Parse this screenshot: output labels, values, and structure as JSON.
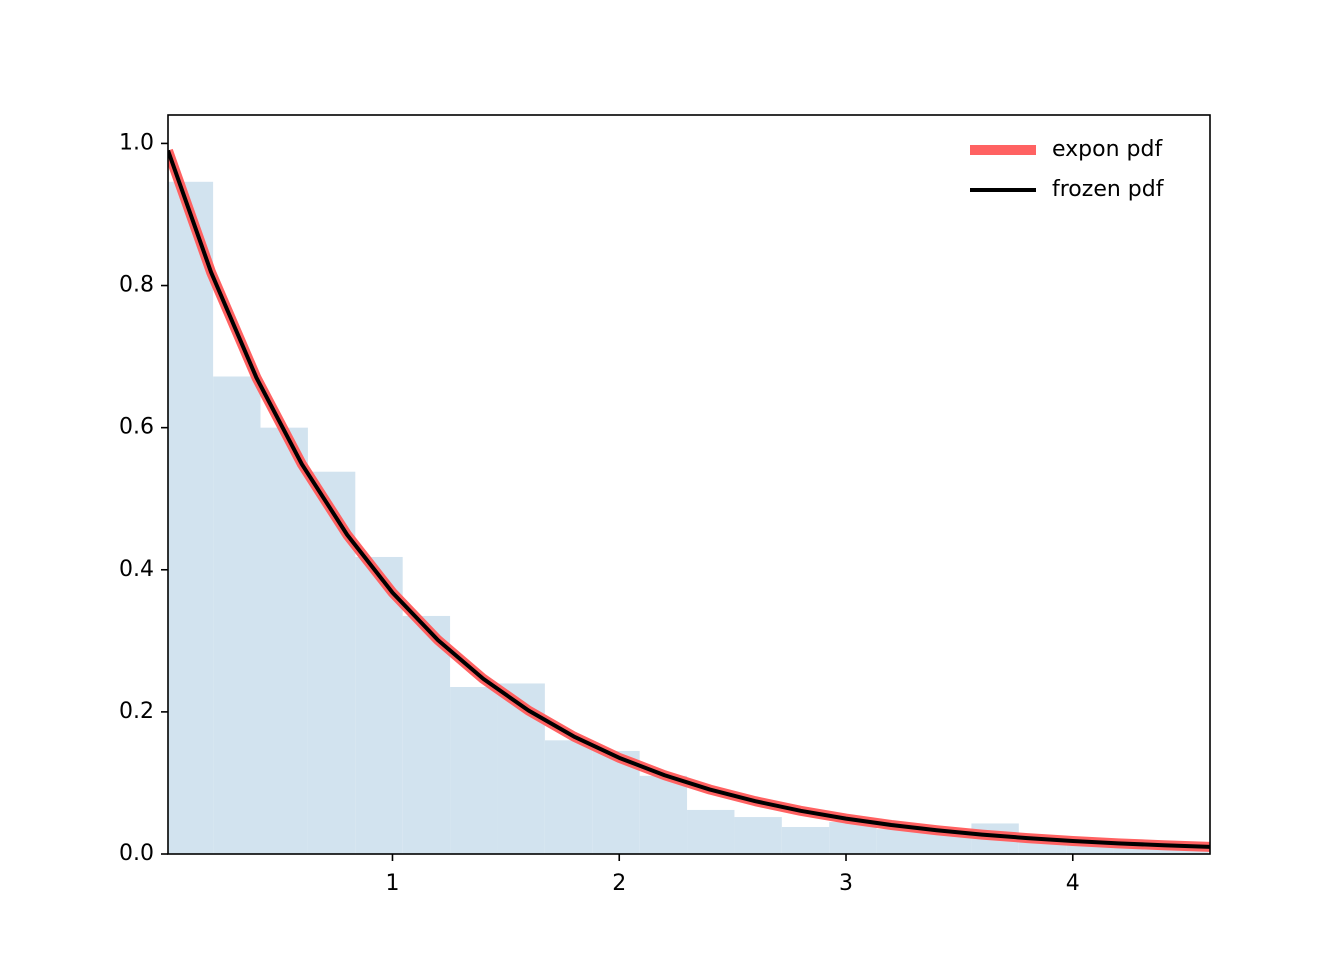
{
  "chart_data": {
    "type": "histogram",
    "bins": [
      0,
      0.209,
      0.418,
      0.627,
      0.836,
      1.045,
      1.254,
      1.463,
      1.672,
      1.881,
      2.09,
      2.299,
      2.508,
      2.717,
      2.926,
      3.135,
      3.344,
      3.553,
      3.762,
      3.971,
      4.18,
      4.389,
      4.598
    ],
    "values": [
      0.946,
      0.672,
      0.6,
      0.538,
      0.418,
      0.335,
      0.235,
      0.24,
      0.16,
      0.145,
      0.11,
      0.062,
      0.052,
      0.038,
      0.045,
      0.035,
      0.03,
      0.043,
      0.02,
      0.015,
      0.012,
      0.008
    ],
    "color": "#d2e3ef",
    "lines": [
      {
        "name": "expon pdf",
        "color": "#ff6262",
        "width": 10,
        "x": [
          0.01005,
          0.2,
          0.4,
          0.6,
          0.8,
          1.0,
          1.2,
          1.4,
          1.6,
          1.8,
          2.0,
          2.2,
          2.4,
          2.6,
          2.8,
          3.0,
          3.2,
          3.4,
          3.6,
          3.8,
          4.0,
          4.2,
          4.4,
          4.60517
        ],
        "values": [
          0.99,
          0.8187,
          0.6703,
          0.5488,
          0.4493,
          0.3679,
          0.3012,
          0.2466,
          0.2019,
          0.1653,
          0.1353,
          0.1108,
          0.0907,
          0.0743,
          0.0608,
          0.0498,
          0.0408,
          0.0334,
          0.0273,
          0.0224,
          0.0183,
          0.015,
          0.0123,
          0.01
        ]
      },
      {
        "name": "frozen pdf",
        "color": "#000000",
        "width": 4,
        "x": [
          0.01005,
          0.2,
          0.4,
          0.6,
          0.8,
          1.0,
          1.2,
          1.4,
          1.6,
          1.8,
          2.0,
          2.2,
          2.4,
          2.6,
          2.8,
          3.0,
          3.2,
          3.4,
          3.6,
          3.8,
          4.0,
          4.2,
          4.4,
          4.60517
        ],
        "values": [
          0.99,
          0.8187,
          0.6703,
          0.5488,
          0.4493,
          0.3679,
          0.3012,
          0.2466,
          0.2019,
          0.1653,
          0.1353,
          0.1108,
          0.0907,
          0.0743,
          0.0608,
          0.0498,
          0.0408,
          0.0334,
          0.0273,
          0.0224,
          0.0183,
          0.015,
          0.0123,
          0.01
        ]
      }
    ],
    "xlim": [
      0.01005,
      4.60517
    ],
    "ylim": [
      0,
      1.04
    ],
    "xticks": [
      1,
      2,
      3,
      4
    ],
    "yticks": [
      {
        "value": 0,
        "label": "0.0"
      },
      0.2,
      0.4,
      0.6,
      0.8,
      {
        "value": 1,
        "label": "1.0"
      }
    ],
    "grid": false,
    "legend": "upper right"
  }
}
